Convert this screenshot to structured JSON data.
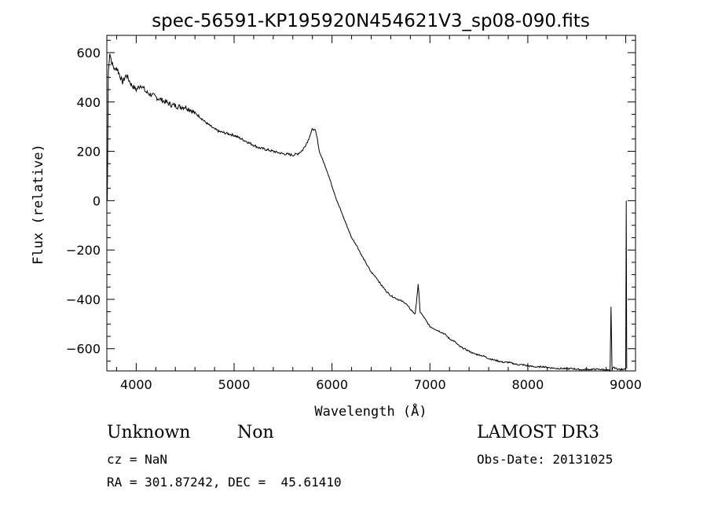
{
  "chart_data": {
    "type": "line",
    "title": "spec-56591-KP195920N454621V3_sp08-090.fits",
    "xlabel": "Wavelength (Å)",
    "ylabel": "Flux (relative)",
    "xlim": [
      3700,
      9100
    ],
    "ylim": [
      -690,
      670
    ],
    "xticks": [
      4000,
      5000,
      6000,
      7000,
      8000,
      9000
    ],
    "yticks": [
      600,
      400,
      200,
      0,
      -200,
      -400,
      -600
    ],
    "grid": false,
    "series": [
      {
        "x": [
          3705,
          3710,
          3715,
          3730,
          3750,
          3780,
          3800,
          3830,
          3860,
          3900,
          3950,
          4000,
          4050,
          4100,
          4150,
          4200,
          4250,
          4300,
          4350,
          4400,
          4450,
          4500,
          4550,
          4600,
          4650,
          4700,
          4750,
          4800,
          4850,
          4900,
          4950,
          5000,
          5050,
          5100,
          5150,
          5200,
          5250,
          5300,
          5350,
          5400,
          5450,
          5500,
          5550,
          5600,
          5650,
          5700,
          5750,
          5800,
          5830,
          5850,
          5870,
          5900,
          5950,
          6000,
          6050,
          6100,
          6150,
          6200,
          6250,
          6300,
          6350,
          6400,
          6450,
          6500,
          6550,
          6600,
          6650,
          6700,
          6750,
          6800,
          6850,
          6880,
          6900,
          6950,
          7000,
          7050,
          7100,
          7150,
          7200,
          7250,
          7300,
          7350,
          7400,
          7450,
          7500,
          7550,
          7600,
          7650,
          7700,
          7750,
          7800,
          7850,
          7900,
          7950,
          8000,
          8050,
          8100,
          8150,
          8200,
          8250,
          8300,
          8350,
          8400,
          8450,
          8500,
          8550,
          8600,
          8650,
          8700,
          8750,
          8800,
          8840,
          8850,
          8860,
          8870,
          8900,
          8950,
          8990,
          9000,
          9005,
          9010
        ],
        "y": [
          0,
          230,
          520,
          600,
          560,
          530,
          540,
          510,
          480,
          510,
          470,
          450,
          470,
          440,
          430,
          420,
          410,
          400,
          390,
          385,
          380,
          380,
          370,
          355,
          340,
          320,
          305,
          290,
          280,
          275,
          270,
          265,
          255,
          245,
          235,
          225,
          215,
          210,
          205,
          200,
          195,
          190,
          188,
          185,
          190,
          205,
          240,
          290,
          285,
          250,
          200,
          170,
          120,
          60,
          0,
          -50,
          -100,
          -150,
          -180,
          -220,
          -255,
          -290,
          -310,
          -340,
          -365,
          -385,
          -395,
          -405,
          -415,
          -440,
          -460,
          -340,
          -450,
          -480,
          -510,
          -520,
          -530,
          -540,
          -560,
          -570,
          -590,
          -600,
          -610,
          -620,
          -625,
          -630,
          -640,
          -645,
          -650,
          -655,
          -655,
          -660,
          -665,
          -665,
          -670,
          -672,
          -675,
          -672,
          -676,
          -678,
          -680,
          -680,
          -682,
          -680,
          -683,
          -685,
          -684,
          -684,
          -683,
          -684,
          -685,
          -690,
          -430,
          -690,
          -675,
          -680,
          -685,
          -680,
          -680,
          0,
          -680
        ]
      }
    ]
  },
  "info": {
    "object_class": "Unknown",
    "object_subclass": "Non",
    "survey": "LAMOST DR3",
    "redshift": "cz = NaN",
    "obs_date": "Obs-Date: 20131025",
    "coords": "RA = 301.87242, DEC =  45.61410"
  }
}
